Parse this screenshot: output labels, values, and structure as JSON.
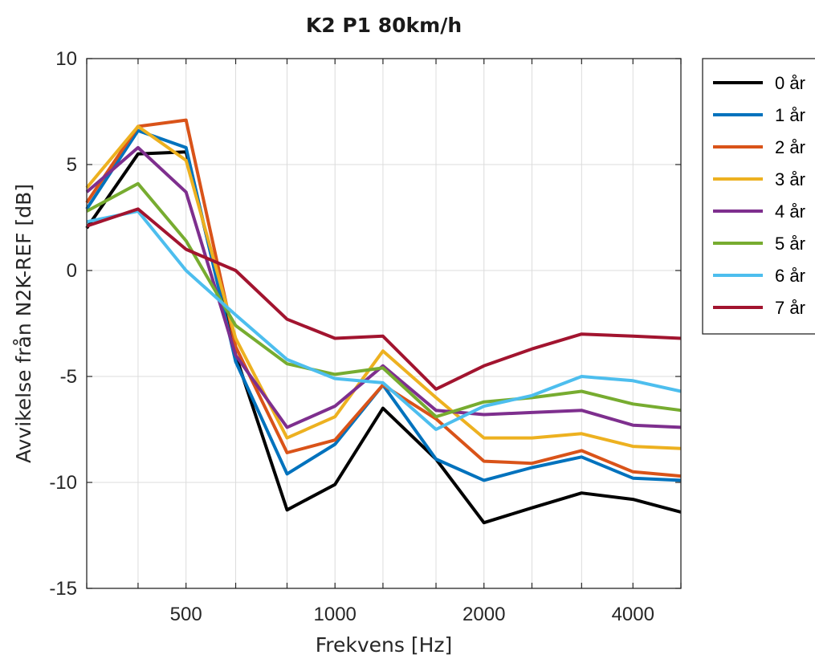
{
  "chart_data": {
    "type": "line",
    "title": "K2 P1 80km/h",
    "xlabel": "Frekvens [Hz]",
    "ylabel": "Avvikelse från N2K-REF [dB]",
    "x": [
      315,
      400,
      500,
      630,
      800,
      1000,
      1250,
      1600,
      2000,
      2500,
      3150,
      4000,
      5000
    ],
    "x_scale": "log",
    "x_ticks": [
      500,
      1000,
      2000,
      4000
    ],
    "x_tick_labels": [
      "500",
      "1000",
      "2000",
      "4000"
    ],
    "ylim": [
      -15,
      10
    ],
    "y_ticks": [
      10,
      5,
      0,
      -5,
      -10,
      -15
    ],
    "y_tick_labels": [
      "10",
      "5",
      "0",
      "-5",
      "-10",
      "-15"
    ],
    "grid": true,
    "legend_position": "outside-right",
    "series": [
      {
        "name": "0 år",
        "color": "#000000",
        "values": [
          2.0,
          5.5,
          5.6,
          -4.0,
          -11.3,
          -10.1,
          -6.5,
          -8.9,
          -11.9,
          -11.2,
          -10.5,
          -10.8,
          -11.4
        ]
      },
      {
        "name": "1 år",
        "color": "#0072BD",
        "values": [
          2.9,
          6.6,
          5.8,
          -4.3,
          -9.6,
          -8.2,
          -5.4,
          -8.9,
          -9.9,
          -9.3,
          -8.8,
          -9.8,
          -9.9
        ]
      },
      {
        "name": "2 år",
        "color": "#D95319",
        "values": [
          3.2,
          6.8,
          7.1,
          -3.6,
          -8.6,
          -8.0,
          -5.4,
          -7.0,
          -9.0,
          -9.1,
          -8.5,
          -9.5,
          -9.7
        ]
      },
      {
        "name": "3 år",
        "color": "#EDB120",
        "values": [
          3.9,
          6.8,
          5.2,
          -3.2,
          -7.9,
          -6.9,
          -3.8,
          -6.0,
          -7.9,
          -7.9,
          -7.7,
          -8.3,
          -8.4
        ]
      },
      {
        "name": "4 år",
        "color": "#7E2F8E",
        "values": [
          3.7,
          5.8,
          3.7,
          -4.0,
          -7.4,
          -6.4,
          -4.5,
          -6.6,
          -6.8,
          -6.7,
          -6.6,
          -7.3,
          -7.4
        ]
      },
      {
        "name": "5 år",
        "color": "#77AC30",
        "values": [
          2.8,
          4.1,
          1.4,
          -2.6,
          -4.4,
          -4.9,
          -4.6,
          -6.9,
          -6.2,
          -6.0,
          -5.7,
          -6.3,
          -6.6
        ]
      },
      {
        "name": "6 år",
        "color": "#4DBEEE",
        "values": [
          2.3,
          2.8,
          0.0,
          -2.1,
          -4.2,
          -5.1,
          -5.3,
          -7.5,
          -6.4,
          -5.9,
          -5.0,
          -5.2,
          -5.7
        ]
      },
      {
        "name": "7 år",
        "color": "#A2142F",
        "values": [
          2.1,
          2.9,
          1.0,
          0.0,
          -2.3,
          -3.2,
          -3.1,
          -5.6,
          -4.5,
          -3.7,
          -3.0,
          -3.1,
          -3.2
        ]
      }
    ]
  }
}
